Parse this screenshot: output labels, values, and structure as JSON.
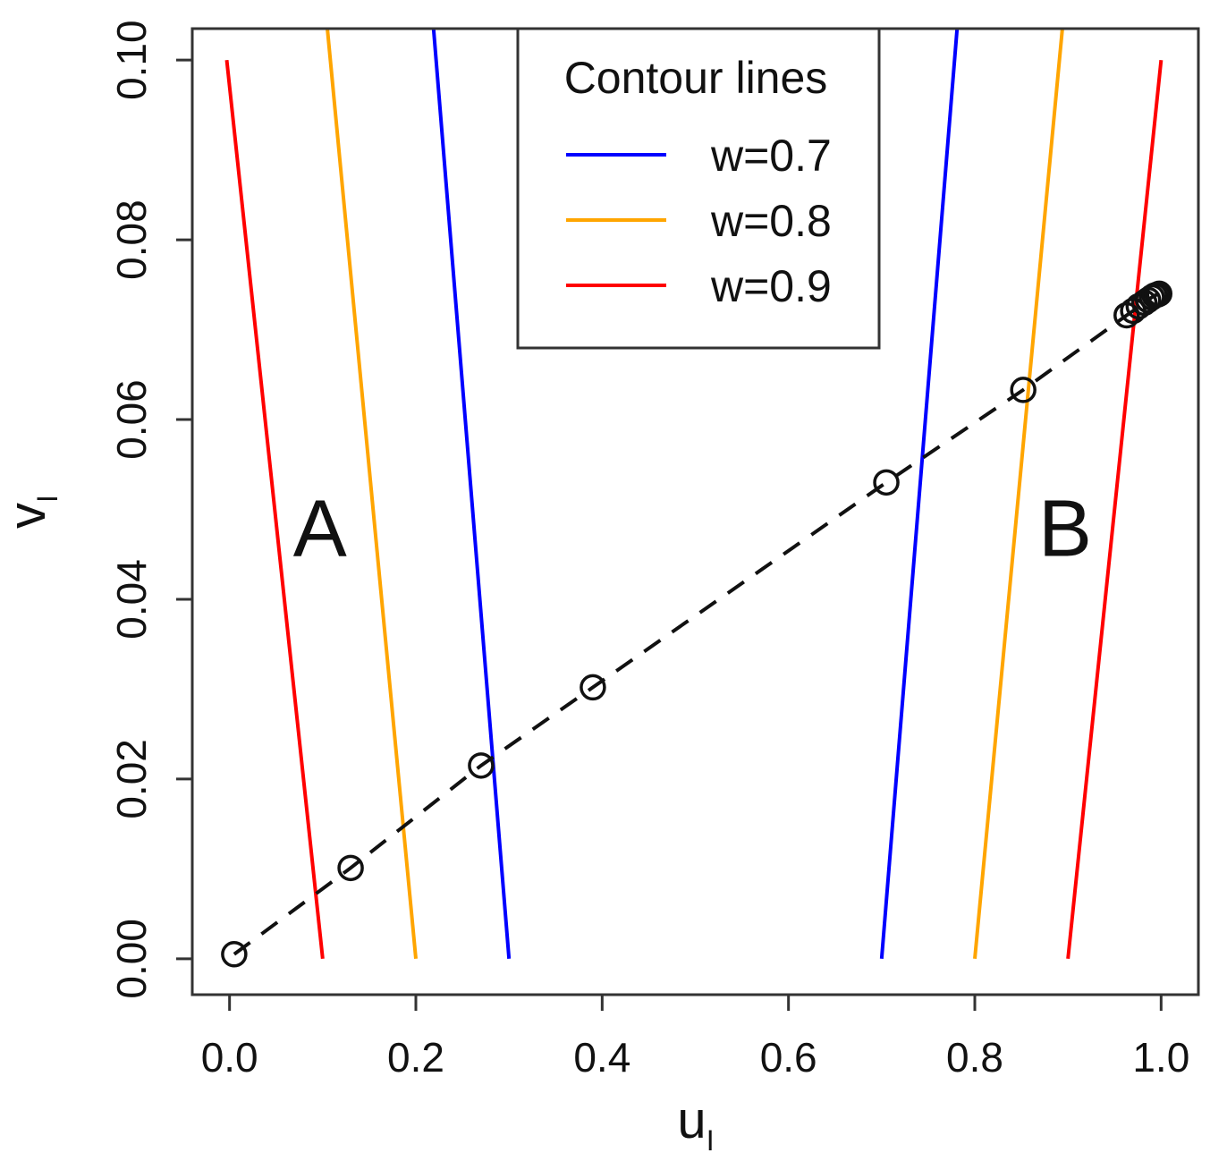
{
  "chart_data": {
    "type": "line",
    "xlabel": "u",
    "xlabel_sub": "I",
    "ylabel": "v",
    "ylabel_sub": "I",
    "xlim": [
      -0.04,
      1.04
    ],
    "ylim": [
      -0.004,
      0.1035
    ],
    "x_ticks": [
      0.0,
      0.2,
      0.4,
      0.6,
      0.8,
      1.0
    ],
    "x_tick_labels": [
      "0.0",
      "0.2",
      "0.4",
      "0.6",
      "0.8",
      "1.0"
    ],
    "y_ticks": [
      0.0,
      0.02,
      0.04,
      0.06,
      0.08,
      0.1
    ],
    "y_tick_labels": [
      "0.00",
      "0.02",
      "0.04",
      "0.06",
      "0.08",
      "0.10"
    ],
    "legend": {
      "title": "Contour lines",
      "position": "top-center",
      "entries": [
        {
          "label": "w=0.7",
          "color": "#0000ff"
        },
        {
          "label": "w=0.8",
          "color": "#ffa500"
        },
        {
          "label": "w=0.9",
          "color": "#ff0000"
        }
      ]
    },
    "contours": [
      {
        "name": "w=0.9",
        "color": "#ff0000",
        "segments": [
          [
            [
              0.1,
              0.0
            ],
            [
              -0.003,
              0.1
            ]
          ],
          [
            [
              0.9,
              0.0
            ],
            [
              1.0,
              0.1
            ]
          ]
        ]
      },
      {
        "name": "w=0.8",
        "color": "#ffa500",
        "segments": [
          [
            [
              0.2,
              0.0
            ],
            [
              0.105,
              0.1035
            ]
          ],
          [
            [
              0.8,
              0.0
            ],
            [
              0.894,
              0.1035
            ]
          ]
        ]
      },
      {
        "name": "w=0.7",
        "color": "#0000ff",
        "segments": [
          [
            [
              0.3,
              0.0
            ],
            [
              0.219,
              0.1035
            ]
          ],
          [
            [
              0.7,
              0.0
            ],
            [
              0.781,
              0.1035
            ]
          ]
        ]
      }
    ],
    "path": {
      "style": "dashed",
      "color": "#111111",
      "x": [
        0.005,
        0.13,
        0.27,
        0.39,
        0.705,
        0.852,
        0.963,
        0.97,
        0.976,
        0.982,
        0.986,
        0.99,
        0.993,
        0.996,
        0.998
      ],
      "y": [
        0.0005,
        0.0101,
        0.0215,
        0.0302,
        0.053,
        0.0633,
        0.0716,
        0.0721,
        0.0726,
        0.073,
        0.0733,
        0.0736,
        0.0738,
        0.0739,
        0.074
      ]
    },
    "annotations": [
      {
        "text": "A",
        "x": 0.097,
        "y": 0.048
      },
      {
        "text": "B",
        "x": 0.897,
        "y": 0.048
      }
    ]
  }
}
